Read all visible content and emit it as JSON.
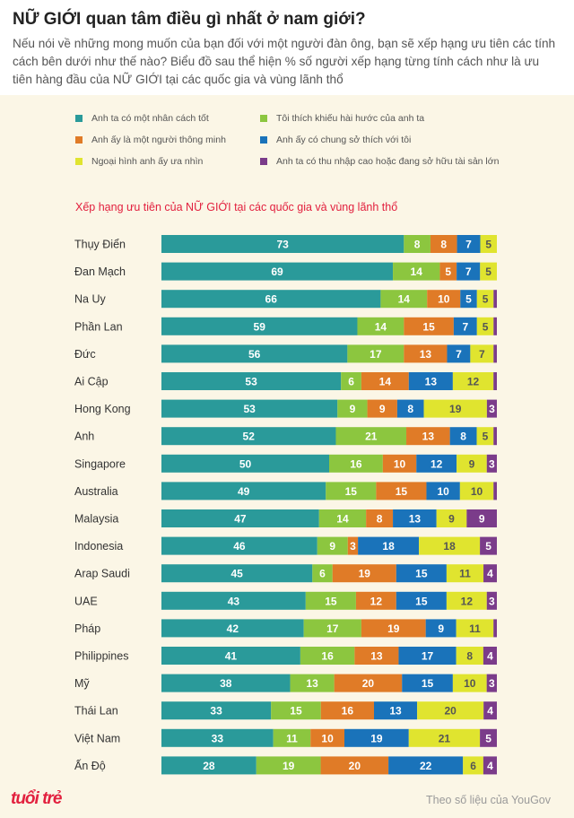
{
  "header": {
    "title": "NỮ GIỚI quan tâm điều gì nhất ở nam giới?",
    "intro": "Nếu nói về những mong muốn của bạn đối với một người đàn ông, bạn sẽ xếp hạng ưu tiên các tính cách bên dưới như thế nào? Biểu đồ sau thể hiện % số người xếp hạng từng tính cách như là ưu tiên hàng đầu của NỮ GIỚI tại các quốc gia và vùng lãnh thổ"
  },
  "chart_data": {
    "type": "bar",
    "orientation": "horizontal",
    "stacked": true,
    "title": "Xếp hạng ưu tiên của NỮ GIỚI tại các quốc gia và vùng lãnh thổ",
    "legend_position": "top",
    "grid": false,
    "xlim": [
      0,
      100
    ],
    "categories": [
      "Thụy Điển",
      "Đan Mạch",
      "Na Uy",
      "Phần Lan",
      "Đức",
      "Ai Cập",
      "Hong Kong",
      "Anh",
      "Singapore",
      "Australia",
      "Malaysia",
      "Indonesia",
      "Arap Saudi",
      "UAE",
      "Pháp",
      "Philippines",
      "Mỹ",
      "Thái Lan",
      "Việt Nam",
      "Ấn Độ"
    ],
    "series": [
      {
        "name": "Anh ta có một nhân cách tốt",
        "color": "#2a9a9a",
        "values": [
          73,
          69,
          66,
          59,
          56,
          53,
          53,
          52,
          50,
          49,
          47,
          46,
          45,
          43,
          42,
          41,
          38,
          33,
          33,
          28
        ]
      },
      {
        "name": "Tôi thích khiếu hài hước của anh ta",
        "color": "#8cc63f",
        "values": [
          8,
          14,
          14,
          14,
          17,
          6,
          9,
          21,
          16,
          15,
          14,
          9,
          6,
          15,
          17,
          16,
          13,
          15,
          11,
          19
        ]
      },
      {
        "name": "Anh ấy là một người thông minh",
        "color": "#e07b27",
        "values": [
          8,
          5,
          10,
          15,
          13,
          14,
          9,
          13,
          10,
          15,
          8,
          3,
          19,
          12,
          19,
          13,
          20,
          16,
          10,
          20
        ]
      },
      {
        "name": "Anh ấy có chung sở thích với tôi",
        "color": "#1a73ba",
        "values": [
          7,
          7,
          5,
          7,
          7,
          13,
          8,
          8,
          12,
          10,
          13,
          18,
          15,
          15,
          9,
          17,
          15,
          13,
          19,
          22
        ]
      },
      {
        "name": "Ngoại hình anh ấy ưa nhìn",
        "color": "#e0e42f",
        "values": [
          5,
          5,
          5,
          5,
          7,
          12,
          19,
          5,
          9,
          10,
          9,
          18,
          11,
          12,
          11,
          8,
          10,
          20,
          21,
          6
        ]
      },
      {
        "name": "Anh ta có thu nhập cao hoặc đang sở hữu tài sản lớn",
        "color": "#7b3c8a",
        "values": [
          0,
          0,
          1,
          1,
          1,
          1,
          3,
          1,
          3,
          1,
          9,
          5,
          4,
          3,
          1,
          4,
          3,
          4,
          5,
          4
        ]
      }
    ]
  },
  "footer": {
    "logo": "tuổi trẻ",
    "source": "Theo số liệu của YouGov"
  }
}
